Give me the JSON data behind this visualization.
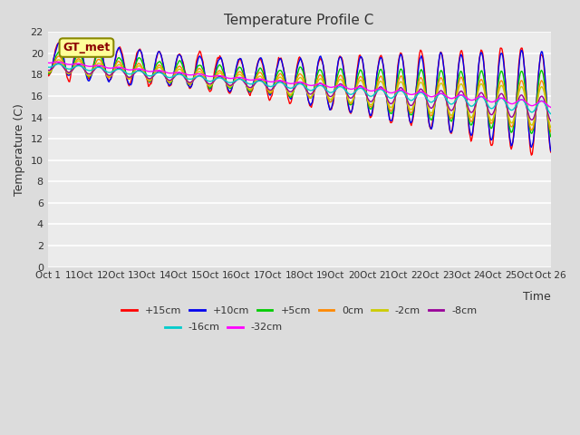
{
  "title": "Temperature Profile C",
  "xlabel": "Time",
  "ylabel": "Temperature (C)",
  "ylim": [
    0,
    22
  ],
  "yticks": [
    0,
    2,
    4,
    6,
    8,
    10,
    12,
    14,
    16,
    18,
    20,
    22
  ],
  "xtick_labels": [
    "Oct 1",
    "11Oct",
    "12Oct",
    "13Oct",
    "14Oct",
    "15Oct",
    "16Oct",
    "17Oct",
    "18Oct",
    "19Oct",
    "20Oct",
    "21Oct",
    "22Oct",
    "23Oct",
    "24Oct",
    "25Oct",
    "Oct 26"
  ],
  "series": [
    {
      "label": "+15cm",
      "color": "#FF0000"
    },
    {
      "label": "+10cm",
      "color": "#0000EE"
    },
    {
      "label": "+5cm",
      "color": "#00CC00"
    },
    {
      "label": "0cm",
      "color": "#FF8800"
    },
    {
      "label": "-2cm",
      "color": "#CCCC00"
    },
    {
      "label": "-8cm",
      "color": "#990099"
    },
    {
      "label": "-16cm",
      "color": "#00CCCC"
    },
    {
      "label": "-32cm",
      "color": "#FF00FF"
    }
  ],
  "annotation_text": "GT_met",
  "annotation_bg": "#FFFF99",
  "annotation_border": "#888800",
  "fig_bg": "#DCDCDC",
  "plot_bg": "#EBEBEB"
}
